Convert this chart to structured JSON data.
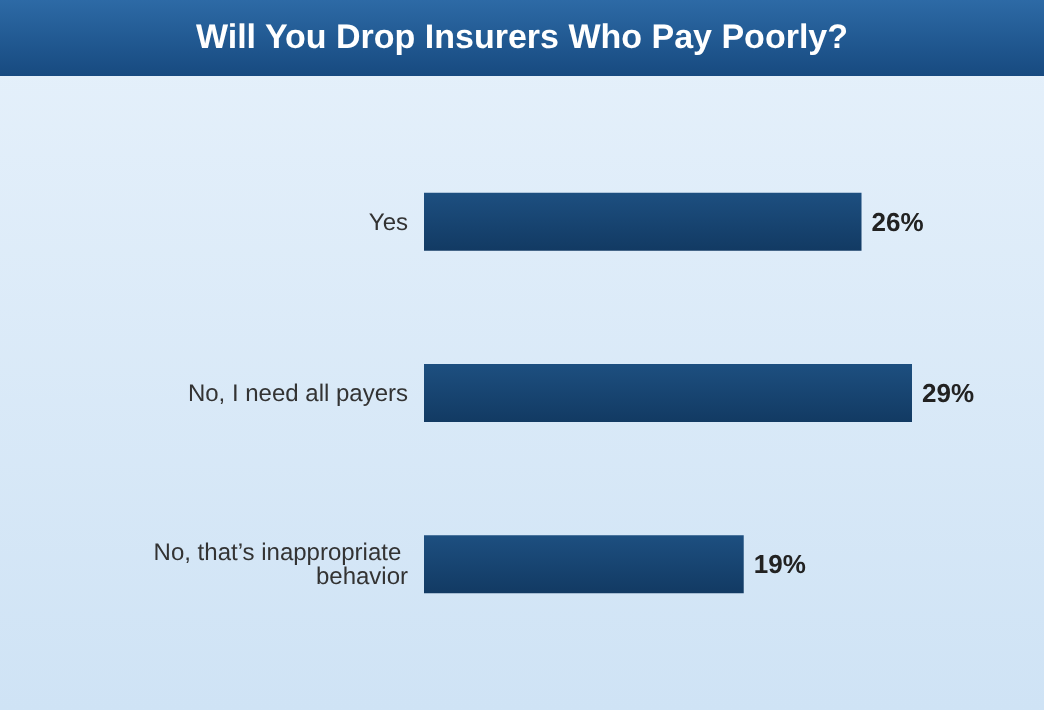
{
  "chart_data": {
    "type": "bar",
    "orientation": "horizontal",
    "title": "Will You Drop Insurers Who Pay Poorly?",
    "categories": [
      "Yes",
      "No, I need all payers",
      "No, that’s inappropriate behavior"
    ],
    "values": [
      26,
      29,
      19
    ],
    "value_labels": [
      "26%",
      "29%",
      "19%"
    ],
    "color": "#1d4f80"
  }
}
